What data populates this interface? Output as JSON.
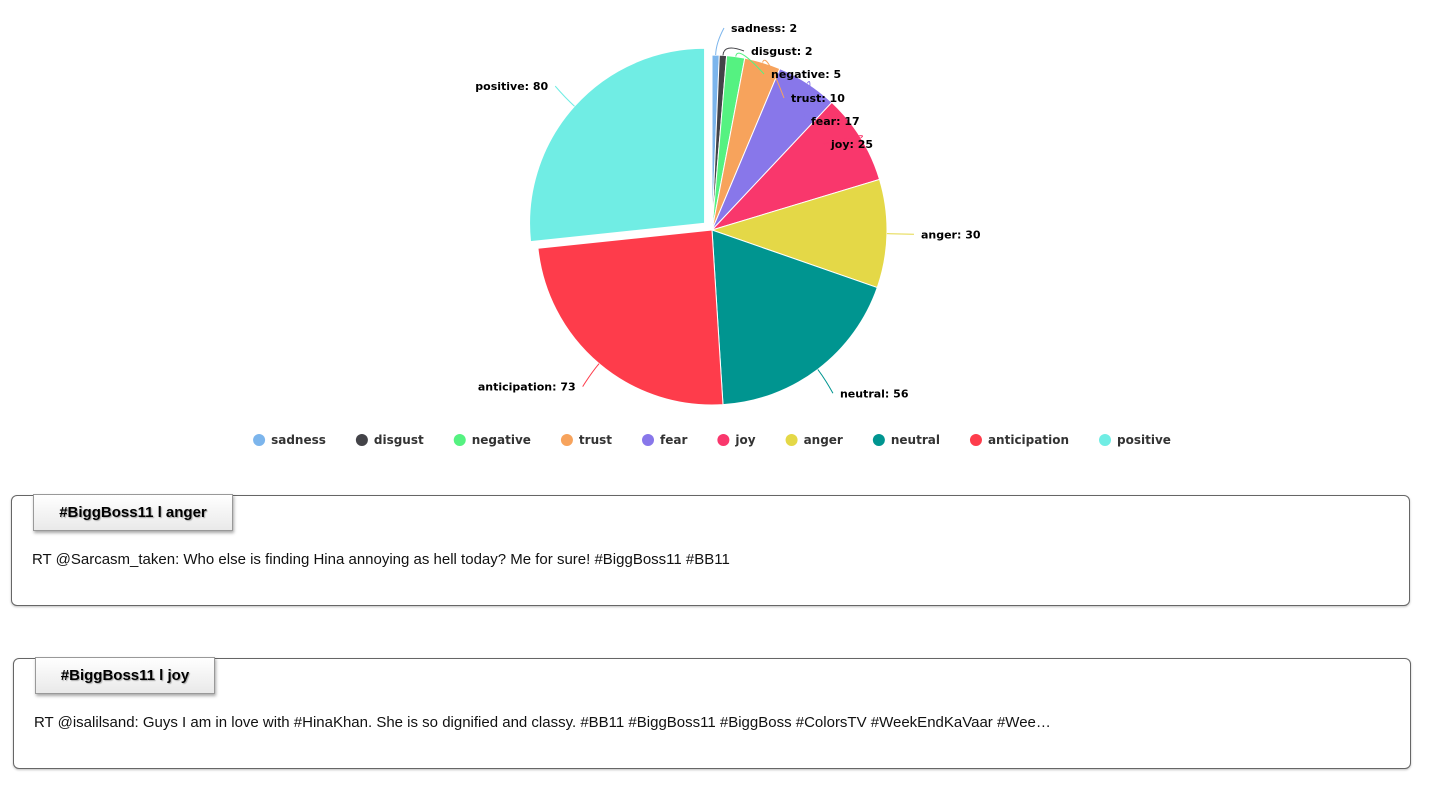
{
  "chart_data": {
    "type": "pie",
    "slices": [
      {
        "name": "sadness",
        "value": 2,
        "color": "#7cb5ec"
      },
      {
        "name": "disgust",
        "value": 2,
        "color": "#434348"
      },
      {
        "name": "negative",
        "value": 5,
        "color": "#55f281"
      },
      {
        "name": "trust",
        "value": 10,
        "color": "#f7a35c"
      },
      {
        "name": "fear",
        "value": 17,
        "color": "#8877ea"
      },
      {
        "name": "joy",
        "value": 25,
        "color": "#f9376c"
      },
      {
        "name": "anger",
        "value": 30,
        "color": "#e4d847"
      },
      {
        "name": "neutral",
        "value": 56,
        "color": "#009590"
      },
      {
        "name": "anticipation",
        "value": 73,
        "color": "#fe3c4b"
      },
      {
        "name": "positive",
        "value": 80,
        "color": "#70ede4",
        "exploded": true
      }
    ],
    "label_format": "{name}: {value}",
    "legend_position": "bottom-center"
  },
  "tweets": [
    {
      "tab": "#BiggBoss11 l anger",
      "text": "RT @Sarcasm_taken: Who else is finding Hina annoying as hell today? Me for sure! #BiggBoss11 #BB11"
    },
    {
      "tab": "#BiggBoss11 l joy",
      "text": "RT @isalilsand: Guys I am in love with #HinaKhan. She is so dignified and classy. #BB11 #BiggBoss11 #BiggBoss #ColorsTV #WeekEndKaVaar #Wee…"
    }
  ]
}
